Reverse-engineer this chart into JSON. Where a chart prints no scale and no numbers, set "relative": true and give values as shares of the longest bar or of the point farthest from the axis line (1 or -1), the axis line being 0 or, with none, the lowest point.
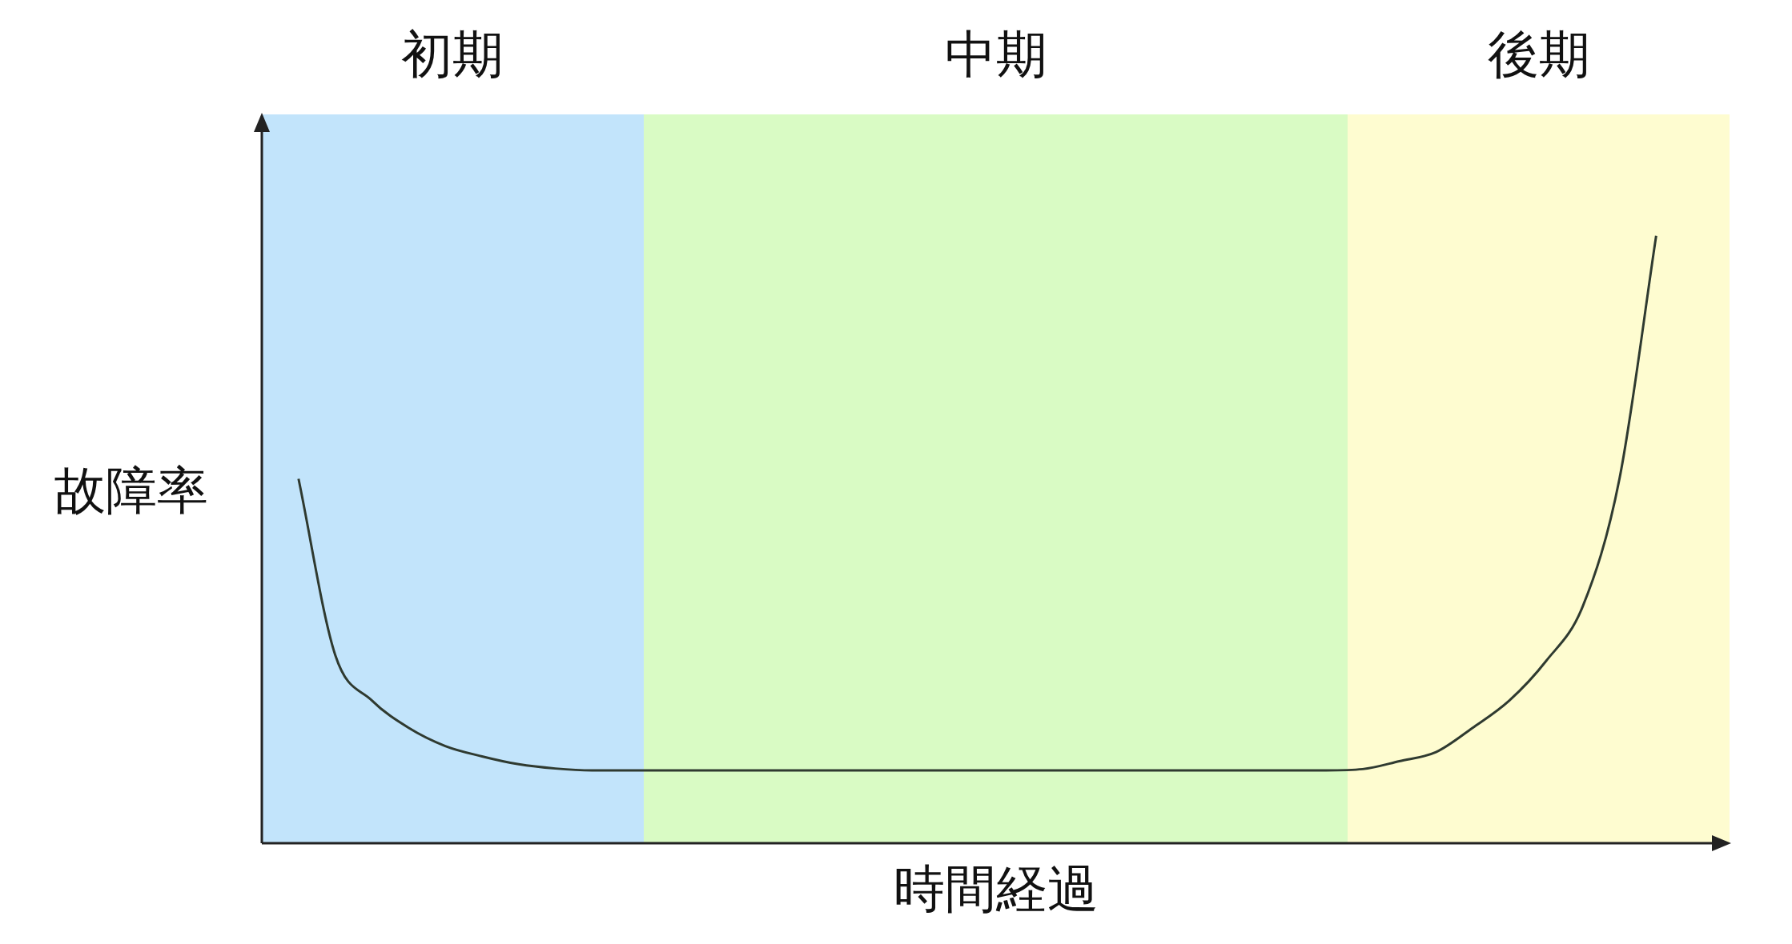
{
  "chart_data": {
    "type": "line",
    "xlabel": "時間経過",
    "ylabel": "故障率",
    "relative": true,
    "grid": false,
    "legend": false,
    "marker": "none",
    "line_style": "solid",
    "annotations": [
      "初期",
      "中期",
      "後期"
    ],
    "categories": [
      null,
      null,
      null,
      null,
      null,
      null,
      null,
      null,
      null,
      null,
      null,
      null,
      null,
      null,
      null,
      null,
      null,
      null,
      null,
      null,
      null,
      null,
      null,
      null,
      null,
      null,
      null,
      null,
      null,
      null,
      null,
      null,
      null,
      null,
      null,
      null,
      null,
      null,
      null,
      null,
      null
    ],
    "series": [
      {
        "color": "#2f3a30",
        "values": [
          null,
          0.6,
          0.31,
          0.235,
          0.19,
          0.16,
          0.143,
          0.13,
          0.123,
          0.12,
          0.12,
          0.12,
          0.12,
          0.12,
          0.12,
          0.12,
          0.12,
          0.12,
          0.12,
          0.12,
          0.12,
          0.12,
          0.12,
          0.12,
          0.12,
          0.12,
          0.12,
          0.12,
          0.12,
          0.12,
          0.122,
          0.135,
          0.15,
          0.19,
          0.235,
          0.3,
          0.39,
          0.6,
          1,
          null,
          null
        ]
      }
    ]
  }
}
